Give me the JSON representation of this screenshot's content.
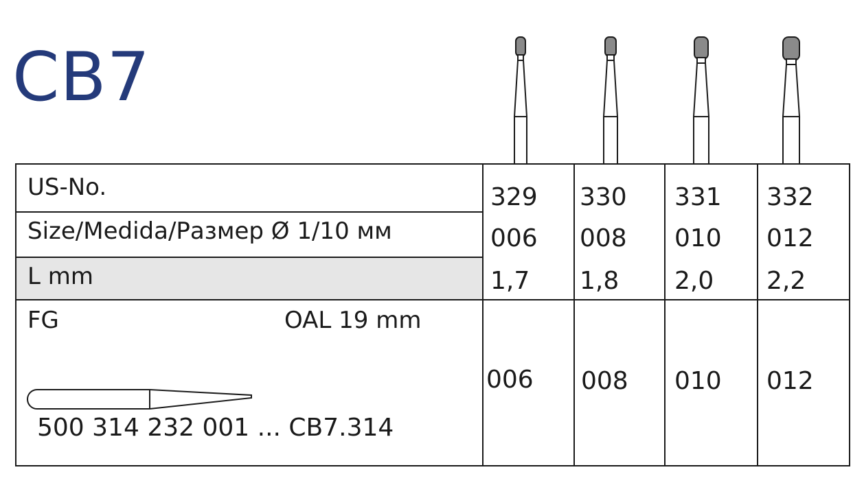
{
  "title": "CB7",
  "table": {
    "labels": {
      "us_no": "US-No.",
      "size": "Size/Medida/Размер Ø 1/10 мм",
      "length": "L mm",
      "shank": "FG",
      "oal": "OAL 19 mm",
      "order_code": "500 314 232 001 ... CB7.314"
    },
    "columns": [
      {
        "us_no": "329",
        "size": "006",
        "length": "1,7",
        "code": "006"
      },
      {
        "us_no": "330",
        "size": "008",
        "length": "1,8",
        "code": "008"
      },
      {
        "us_no": "331",
        "size": "010",
        "length": "2,0",
        "code": "010"
      },
      {
        "us_no": "332",
        "size": "012",
        "length": "2,2",
        "code": "012"
      }
    ]
  },
  "colors": {
    "title": "#243a7a",
    "bur_head": "#8a8a8a",
    "grey_row": "#e6e6e6",
    "lines": "#1a1a1a"
  },
  "icons": [
    "bur-icon",
    "shank-drawing-icon"
  ]
}
